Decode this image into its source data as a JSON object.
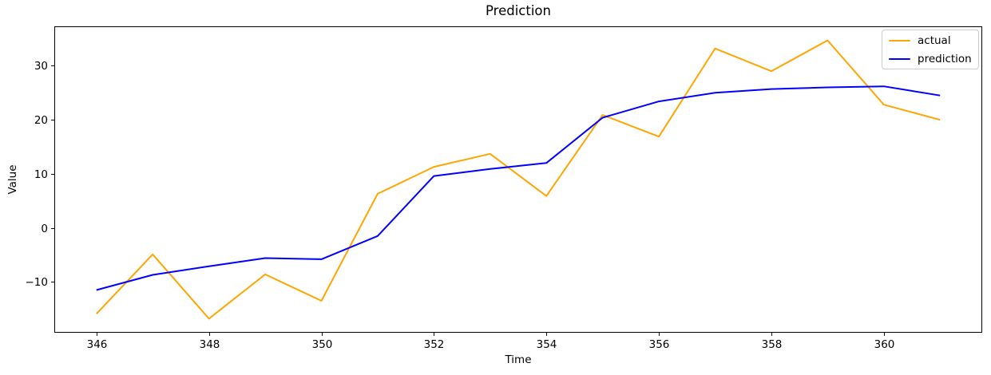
{
  "chart_data": {
    "type": "line",
    "title": "Prediction",
    "xlabel": "Time",
    "ylabel": "Value",
    "grid": false,
    "legend_position": "upper right",
    "xlim": [
      345.25,
      361.75
    ],
    "ylim": [
      -19.4,
      37.3
    ],
    "x": [
      346,
      347,
      348,
      349,
      350,
      351,
      352,
      353,
      354,
      355,
      356,
      357,
      358,
      359,
      360,
      361
    ],
    "series": [
      {
        "name": "actual",
        "color": "#FFA500",
        "values": [
          -15.9,
          -4.9,
          -16.8,
          -8.6,
          -13.5,
          6.3,
          11.3,
          13.7,
          5.9,
          20.9,
          16.9,
          33.2,
          29.0,
          34.7,
          22.8,
          20.0
        ]
      },
      {
        "name": "prediction",
        "color": "#0000FF",
        "values": [
          -11.5,
          -8.7,
          -7.1,
          -5.6,
          -5.8,
          -1.5,
          9.6,
          10.9,
          12.0,
          20.4,
          23.4,
          25.0,
          25.7,
          26.0,
          26.2,
          24.5
        ]
      }
    ],
    "x_ticks": {
      "values": [
        346,
        348,
        350,
        352,
        354,
        356,
        358,
        360
      ],
      "labels": [
        "346",
        "348",
        "350",
        "352",
        "354",
        "356",
        "358",
        "360"
      ]
    },
    "y_ticks": {
      "values": [
        -10,
        0,
        10,
        20,
        30
      ],
      "labels": [
        "−10",
        "0",
        "10",
        "20",
        "30"
      ]
    }
  }
}
